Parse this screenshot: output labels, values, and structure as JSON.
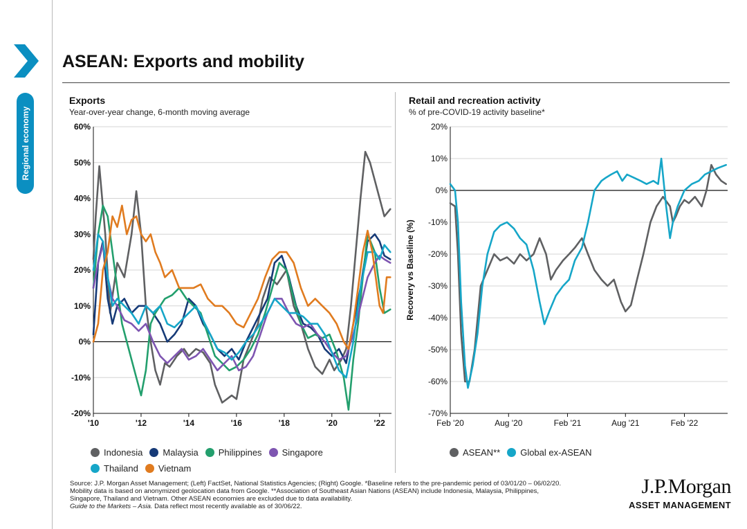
{
  "page": {
    "title": "ASEAN: Exports and mobility",
    "section_label": "Regional economy",
    "footnote": {
      "line1": "Source: J.P. Morgan Asset Management; (Left) FactSet, National Statistics Agencies; (Right) Google. *Baseline refers to the pre-pandemic period of 03/01/20 – 06/02/20.",
      "line2": "Mobility data is based on anonymized geolocation data from Google. **Association of Southeast Asian Nations (ASEAN) include Indonesia, Malaysia, Philippines,",
      "line3": "Singapore, Thailand and Vietnam. Other ASEAN economies are excluded due to data availability.",
      "guide": "Guide to the Markets – Asia.",
      "guide_rest": " Data reflect most recently available as of 30/06/22."
    },
    "logo": {
      "line1": "J.P.Morgan",
      "line2": "ASSET MANAGEMENT"
    }
  },
  "chart_data": [
    {
      "type": "line",
      "title": "Exports",
      "subtitle": "Year-over-year change, 6-month moving average",
      "ylabel": "",
      "ylim": [
        -20,
        60
      ],
      "yticks": [
        -20,
        -10,
        0,
        10,
        20,
        30,
        40,
        50,
        60
      ],
      "ytick_labels": [
        "-20%",
        "-10%",
        "0%",
        "10%",
        "20%",
        "30%",
        "40%",
        "50%",
        "60%"
      ],
      "xlim": [
        2010,
        2022.5
      ],
      "xticks": [
        2010,
        2012,
        2014,
        2016,
        2018,
        2020,
        2022
      ],
      "xtick_labels": [
        "'10",
        "'12",
        "'14",
        "'16",
        "'18",
        "'20",
        "'22"
      ],
      "grid": true,
      "legend": "bottom",
      "series": [
        {
          "name": "Indonesia",
          "color": "#5f6062",
          "x": [
            2010,
            2010.1,
            2010.25,
            2010.5,
            2010.7,
            2011,
            2011.3,
            2011.6,
            2011.8,
            2012,
            2012.2,
            2012.4,
            2012.6,
            2012.8,
            2013,
            2013.2,
            2013.5,
            2013.8,
            2014,
            2014.3,
            2014.6,
            2014.9,
            2015.1,
            2015.4,
            2015.6,
            2015.8,
            2016,
            2016.3,
            2016.6,
            2016.9,
            2017.1,
            2017.4,
            2017.7,
            2017.9,
            2018.1,
            2018.4,
            2018.7,
            2019,
            2019.3,
            2019.6,
            2019.9,
            2020.1,
            2020.4,
            2020.6,
            2020.8,
            2021,
            2021.2,
            2021.4,
            2021.6,
            2021.8,
            2022,
            2022.2,
            2022.45
          ],
          "y": [
            23,
            35,
            49,
            30,
            8,
            22,
            18,
            30,
            42,
            30,
            10,
            0,
            -8,
            -12,
            -6,
            -7,
            -4,
            -2,
            -4,
            -2,
            -3,
            -6,
            -12,
            -17,
            -16,
            -15,
            -16,
            -5,
            0,
            5,
            12,
            18,
            16,
            18,
            20,
            10,
            5,
            -2,
            -7,
            -9,
            -5,
            -8,
            -5,
            -2,
            10,
            25,
            40,
            53,
            50,
            45,
            40,
            35,
            37
          ]
        },
        {
          "name": "Malaysia",
          "color": "#163a77",
          "x": [
            2010,
            2010.2,
            2010.4,
            2010.6,
            2010.8,
            2011,
            2011.3,
            2011.6,
            2011.9,
            2012.2,
            2012.5,
            2012.8,
            2013.1,
            2013.4,
            2013.7,
            2014,
            2014.3,
            2014.6,
            2014.9,
            2015.2,
            2015.5,
            2015.8,
            2016.1,
            2016.4,
            2016.7,
            2017,
            2017.3,
            2017.6,
            2017.9,
            2018.2,
            2018.5,
            2018.8,
            2019.1,
            2019.4,
            2019.7,
            2020,
            2020.3,
            2020.6,
            2020.9,
            2021.2,
            2021.5,
            2021.8,
            2022,
            2022.2,
            2022.45
          ],
          "y": [
            2,
            22,
            28,
            12,
            5,
            10,
            12,
            8,
            10,
            10,
            8,
            5,
            0,
            2,
            5,
            12,
            10,
            5,
            2,
            -2,
            -4,
            -2,
            -5,
            0,
            4,
            8,
            12,
            22,
            24,
            18,
            10,
            5,
            4,
            2,
            -2,
            -4,
            -2,
            -6,
            5,
            15,
            28,
            30,
            28,
            24,
            23
          ]
        },
        {
          "name": "Philippines",
          "color": "#239f6d",
          "x": [
            2010,
            2010.2,
            2010.4,
            2010.6,
            2010.8,
            2011,
            2011.2,
            2011.4,
            2011.6,
            2011.8,
            2012,
            2012.2,
            2012.4,
            2012.6,
            2012.8,
            2013,
            2013.3,
            2013.6,
            2013.9,
            2014.2,
            2014.5,
            2014.8,
            2015.1,
            2015.4,
            2015.7,
            2016,
            2016.3,
            2016.6,
            2016.9,
            2017.2,
            2017.5,
            2017.8,
            2018.1,
            2018.4,
            2018.7,
            2019,
            2019.3,
            2019.6,
            2019.9,
            2020.2,
            2020.5,
            2020.7,
            2020.9,
            2021.1,
            2021.3,
            2021.5,
            2021.8,
            2022,
            2022.2,
            2022.45
          ],
          "y": [
            15,
            30,
            38,
            35,
            25,
            15,
            5,
            0,
            -5,
            -10,
            -15,
            -8,
            5,
            8,
            10,
            12,
            13,
            15,
            12,
            10,
            8,
            2,
            -4,
            -6,
            -8,
            -7,
            -5,
            -2,
            2,
            8,
            15,
            22,
            20,
            12,
            5,
            1,
            2,
            1,
            2,
            -3,
            -10,
            -19,
            -5,
            5,
            18,
            30,
            25,
            15,
            8,
            9
          ]
        },
        {
          "name": "Singapore",
          "color": "#7e55b1",
          "x": [
            2010,
            2010.2,
            2010.4,
            2010.6,
            2010.8,
            2011,
            2011.3,
            2011.6,
            2011.9,
            2012.2,
            2012.5,
            2012.8,
            2013.1,
            2013.4,
            2013.7,
            2014,
            2014.3,
            2014.6,
            2014.9,
            2015.2,
            2015.5,
            2015.8,
            2016.1,
            2016.4,
            2016.7,
            2017,
            2017.3,
            2017.6,
            2017.9,
            2018.2,
            2018.5,
            2018.8,
            2019.1,
            2019.4,
            2019.7,
            2020,
            2020.3,
            2020.6,
            2020.9,
            2021.2,
            2021.5,
            2021.8,
            2022,
            2022.2,
            2022.45
          ],
          "y": [
            15,
            22,
            27,
            18,
            12,
            10,
            6,
            5,
            3,
            5,
            0,
            -4,
            -6,
            -4,
            -2,
            -5,
            -4,
            -2,
            -5,
            -8,
            -6,
            -4,
            -8,
            -7,
            -4,
            2,
            8,
            12,
            12,
            8,
            5,
            4,
            5,
            2,
            0,
            -3,
            -5,
            -4,
            2,
            10,
            18,
            22,
            24,
            23,
            22
          ]
        },
        {
          "name": "Thailand",
          "color": "#16a6c8",
          "x": [
            2010,
            2010.2,
            2010.4,
            2010.6,
            2010.8,
            2011,
            2011.3,
            2011.6,
            2011.9,
            2012.2,
            2012.5,
            2012.8,
            2013.1,
            2013.4,
            2013.7,
            2014,
            2014.3,
            2014.6,
            2014.9,
            2015.2,
            2015.5,
            2015.8,
            2016.1,
            2016.4,
            2016.7,
            2017,
            2017.3,
            2017.6,
            2017.9,
            2018.2,
            2018.5,
            2018.8,
            2019.1,
            2019.4,
            2019.7,
            2020,
            2020.3,
            2020.6,
            2020.9,
            2021.2,
            2021.5,
            2021.8,
            2022,
            2022.2,
            2022.45
          ],
          "y": [
            20,
            30,
            28,
            18,
            10,
            12,
            10,
            8,
            5,
            10,
            8,
            10,
            5,
            4,
            6,
            8,
            10,
            6,
            2,
            -2,
            -3,
            -5,
            -3,
            0,
            2,
            5,
            8,
            12,
            10,
            8,
            8,
            7,
            5,
            5,
            2,
            -3,
            -8,
            -10,
            0,
            15,
            25,
            25,
            23,
            27,
            25
          ]
        },
        {
          "name": "Vietnam",
          "color": "#e07b1f",
          "x": [
            2010,
            2010.2,
            2010.4,
            2010.6,
            2010.8,
            2011,
            2011.2,
            2011.4,
            2011.6,
            2011.8,
            2012,
            2012.2,
            2012.4,
            2012.6,
            2012.8,
            2013,
            2013.3,
            2013.6,
            2013.9,
            2014.2,
            2014.5,
            2014.8,
            2015.1,
            2015.4,
            2015.7,
            2016,
            2016.3,
            2016.6,
            2016.9,
            2017.2,
            2017.5,
            2017.8,
            2018.1,
            2018.4,
            2018.7,
            2019,
            2019.3,
            2019.6,
            2019.9,
            2020.2,
            2020.5,
            2020.7,
            2020.9,
            2021.1,
            2021.3,
            2021.5,
            2021.7,
            2021.9,
            2022,
            2022.15,
            2022.3,
            2022.45
          ],
          "y": [
            0,
            5,
            20,
            25,
            35,
            32,
            38,
            30,
            34,
            35,
            30,
            28,
            30,
            25,
            22,
            18,
            20,
            15,
            15,
            15,
            16,
            12,
            10,
            10,
            8,
            5,
            4,
            8,
            12,
            18,
            23,
            25,
            25,
            22,
            15,
            10,
            12,
            10,
            8,
            5,
            0,
            -2,
            5,
            15,
            25,
            31,
            25,
            15,
            10,
            8,
            18,
            18
          ]
        }
      ]
    },
    {
      "type": "line",
      "title": "Retail and recreation activity",
      "subtitle": "% of pre-COVID-19 activity baseline*",
      "ylabel": "Recovery vs Baseline (%)",
      "ylim": [
        -70,
        20
      ],
      "yticks": [
        -70,
        -60,
        -50,
        -40,
        -30,
        -20,
        -10,
        0,
        10,
        20
      ],
      "ytick_labels": [
        "-70%",
        "-60%",
        "-50%",
        "-40%",
        "-30%",
        "-20%",
        "-10%",
        "0%",
        "10%",
        "20%"
      ],
      "xlim": [
        "2020-02-15",
        "2022-06-30"
      ],
      "xticks": [
        "2020-02-15",
        "2020-08-15",
        "2021-02-15",
        "2021-08-15",
        "2022-02-15"
      ],
      "xtick_labels": [
        "Feb '20",
        "Aug '20",
        "Feb '21",
        "Aug '21",
        "Feb '22"
      ],
      "grid": true,
      "legend": "bottom",
      "series": [
        {
          "name": "ASEAN**",
          "color": "#5f6062",
          "x": [
            "2020-02-15",
            "2020-03-01",
            "2020-03-10",
            "2020-03-20",
            "2020-04-01",
            "2020-04-15",
            "2020-05-01",
            "2020-05-20",
            "2020-06-10",
            "2020-07-01",
            "2020-07-20",
            "2020-08-10",
            "2020-09-01",
            "2020-09-20",
            "2020-10-10",
            "2020-11-01",
            "2020-11-20",
            "2020-12-10",
            "2020-12-25",
            "2021-01-10",
            "2021-02-01",
            "2021-02-20",
            "2021-03-10",
            "2021-04-01",
            "2021-04-20",
            "2021-05-10",
            "2021-06-01",
            "2021-06-20",
            "2021-07-10",
            "2021-08-01",
            "2021-08-15",
            "2021-09-01",
            "2021-09-20",
            "2021-10-10",
            "2021-11-01",
            "2021-11-20",
            "2021-12-10",
            "2022-01-01",
            "2022-01-10",
            "2022-01-20",
            "2022-02-01",
            "2022-02-15",
            "2022-03-01",
            "2022-03-20",
            "2022-04-10",
            "2022-04-25",
            "2022-05-10",
            "2022-05-25",
            "2022-06-10",
            "2022-06-25"
          ],
          "y": [
            -4,
            -5,
            -20,
            -45,
            -60,
            -60,
            -50,
            -30,
            -25,
            -20,
            -22,
            -21,
            -23,
            -20,
            -22,
            -20,
            -15,
            -20,
            -28,
            -25,
            -22,
            -20,
            -18,
            -15,
            -20,
            -25,
            -28,
            -30,
            -28,
            -35,
            -38,
            -36,
            -28,
            -20,
            -10,
            -5,
            -2,
            -5,
            -10,
            -8,
            -5,
            -3,
            -4,
            -2,
            -5,
            0,
            8,
            5,
            3,
            2
          ]
        },
        {
          "name": "Global ex-ASEAN",
          "color": "#16a6c8",
          "x": [
            "2020-02-15",
            "2020-03-01",
            "2020-03-10",
            "2020-03-20",
            "2020-04-01",
            "2020-04-10",
            "2020-04-25",
            "2020-05-10",
            "2020-05-25",
            "2020-06-10",
            "2020-07-01",
            "2020-07-20",
            "2020-08-10",
            "2020-09-01",
            "2020-09-20",
            "2020-10-10",
            "2020-11-01",
            "2020-11-20",
            "2020-12-05",
            "2020-12-20",
            "2021-01-10",
            "2021-02-01",
            "2021-02-20",
            "2021-03-10",
            "2021-04-01",
            "2021-04-20",
            "2021-05-10",
            "2021-06-01",
            "2021-06-15",
            "2021-07-01",
            "2021-07-20",
            "2021-08-05",
            "2021-08-20",
            "2021-09-10",
            "2021-10-01",
            "2021-10-20",
            "2021-11-10",
            "2021-11-25",
            "2021-12-05",
            "2021-12-20",
            "2022-01-01",
            "2022-01-10",
            "2022-01-25",
            "2022-02-15",
            "2022-03-10",
            "2022-04-01",
            "2022-04-20",
            "2022-05-10",
            "2022-05-30",
            "2022-06-25"
          ],
          "y": [
            2,
            0,
            -10,
            -35,
            -55,
            -62,
            -55,
            -45,
            -30,
            -20,
            -13,
            -11,
            -10,
            -12,
            -15,
            -17,
            -25,
            -35,
            -42,
            -38,
            -33,
            -30,
            -28,
            -22,
            -18,
            -10,
            0,
            3,
            4,
            5,
            6,
            3,
            5,
            4,
            3,
            2,
            3,
            2,
            10,
            -5,
            -15,
            -10,
            -5,
            0,
            2,
            3,
            5,
            6,
            7,
            8
          ]
        }
      ]
    }
  ]
}
